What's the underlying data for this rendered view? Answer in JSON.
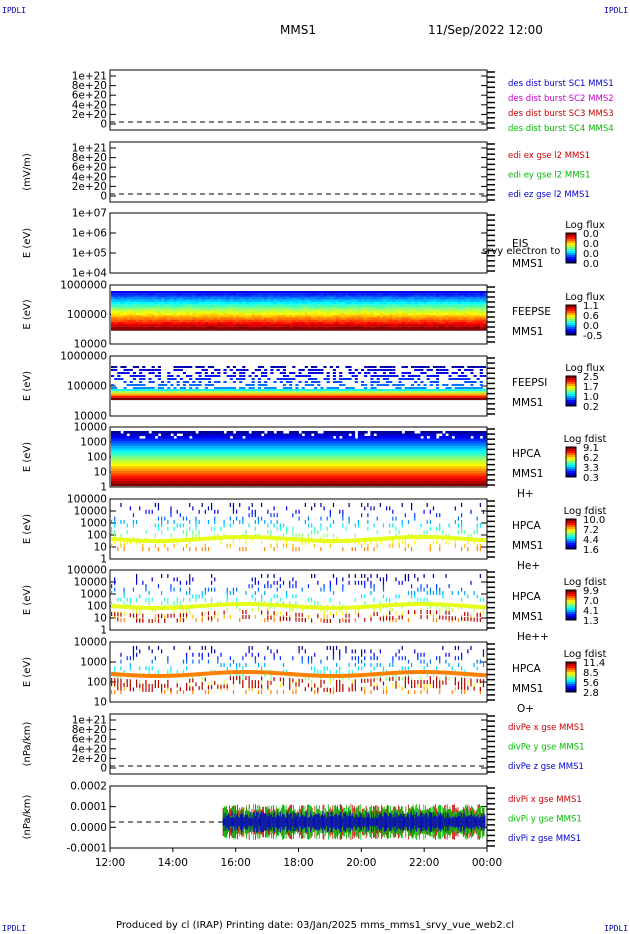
{
  "corner_labels": {
    "tl": "IPDLI",
    "tr": "IPDLI",
    "bl": "IPDLI",
    "br": "IPDLI"
  },
  "header": {
    "spacecraft": "MMS1",
    "datetime": "11/Sep/2022 12:00"
  },
  "footer": "Produced by cl (IRAP)   Printing date: 03/Jan/2025   mms_mms1_srvy_vue_web2.cl",
  "colors": {
    "blue": "#0000cc",
    "magenta": "#cc00cc",
    "red": "#cc0000",
    "green": "#00bb00"
  },
  "chart_data": {
    "type": "multi-panel",
    "x_ticks": [
      "12:00",
      "14:00",
      "16:00",
      "18:00",
      "20:00",
      "22:00",
      "00:00"
    ],
    "panels": [
      {
        "type": "line",
        "ylabel": "",
        "ticks": [
          "1e+21",
          "8e+20",
          "6e+20",
          "4e+20",
          "2e+20",
          "0"
        ],
        "legend": [
          {
            "text": "des dist burst SC1 MMS1",
            "color": "blue"
          },
          {
            "text": "des dist burst SC2 MMS2",
            "color": "magenta"
          },
          {
            "text": "des dist burst SC3 MMS3",
            "color": "red"
          },
          {
            "text": "des dist burst SC4 MMS4",
            "color": "green"
          }
        ]
      },
      {
        "type": "line",
        "ylabel": "(mV/m)",
        "ticks": [
          "1e+21",
          "8e+20",
          "6e+20",
          "4e+20",
          "2e+20",
          "0"
        ],
        "legend": [
          {
            "text": "edi ex gse l2 MMS1",
            "color": "red"
          },
          {
            "text": "edi ey gse l2 MMS1",
            "color": "green"
          },
          {
            "text": "edi ez gse l2 MMS1",
            "color": "blue"
          }
        ]
      },
      {
        "type": "heatmap",
        "ylabel": "E (eV)",
        "ticks": [
          "1e+07",
          "1e+06",
          "1e+05",
          "1e+04"
        ],
        "instrument": [
          "EIS",
          "MMS1"
        ],
        "overlay": "srvy electron to",
        "cbar_title": "Log flux",
        "cbar_ticks": [
          "0.0",
          "0.0",
          "0.0",
          "0.0"
        ],
        "empty": true
      },
      {
        "type": "heatmap",
        "ylabel": "E (eV)",
        "ticks": [
          "1000000",
          "100000",
          "10000"
        ],
        "instrument": [
          "FEEPSE",
          "MMS1"
        ],
        "cbar_title": "Log flux",
        "cbar_ticks": [
          "1.1",
          "0.6",
          "0.0",
          "-0.5"
        ]
      },
      {
        "type": "heatmap",
        "ylabel": "E (eV)",
        "ticks": [
          "1000000",
          "100000",
          "10000"
        ],
        "instrument": [
          "FEEPSI",
          "MMS1"
        ],
        "cbar_title": "Log flux",
        "cbar_ticks": [
          "2.5",
          "1.7",
          "1.0",
          "0.2"
        ]
      },
      {
        "type": "heatmap",
        "ylabel": "E (eV)",
        "ticks": [
          "10000",
          "1000",
          "100",
          "10",
          "1"
        ],
        "instrument": [
          "HPCA",
          "MMS1",
          "H+"
        ],
        "cbar_title": "Log fdist",
        "cbar_ticks": [
          "9.1",
          "6.2",
          "3.3",
          "0.3"
        ]
      },
      {
        "type": "heatmap",
        "ylabel": "E (eV)",
        "ticks": [
          "100000",
          "10000",
          "1000",
          "100",
          "10",
          "1"
        ],
        "instrument": [
          "HPCA",
          "MMS1",
          "He+"
        ],
        "cbar_title": "Log fdist",
        "cbar_ticks": [
          "10.0",
          "7.2",
          "4.4",
          "1.6"
        ]
      },
      {
        "type": "heatmap",
        "ylabel": "E (eV)",
        "ticks": [
          "100000",
          "10000",
          "1000",
          "100",
          "10",
          "1"
        ],
        "instrument": [
          "HPCA",
          "MMS1",
          "He++"
        ],
        "cbar_title": "Log fdist",
        "cbar_ticks": [
          "9.9",
          "7.0",
          "4.1",
          "1.3"
        ]
      },
      {
        "type": "heatmap",
        "ylabel": "E (eV)",
        "ticks": [
          "10000",
          "1000",
          "100",
          "10"
        ],
        "instrument": [
          "HPCA",
          "MMS1",
          "O+"
        ],
        "cbar_title": "Log fdist",
        "cbar_ticks": [
          "11.4",
          "8.5",
          "5.6",
          "2.8"
        ]
      },
      {
        "type": "line",
        "ylabel": "(nPa/km)",
        "ticks": [
          "1e+21",
          "8e+20",
          "6e+20",
          "4e+20",
          "2e+20",
          "0"
        ],
        "legend": [
          {
            "text": "divPe x gse MMS1",
            "color": "red"
          },
          {
            "text": "divPe y gse MMS1",
            "color": "green"
          },
          {
            "text": "divPe z gse MMS1",
            "color": "blue"
          }
        ]
      },
      {
        "type": "line",
        "ylabel": "(nPa/km)",
        "ticks": [
          "0.0002",
          "0.0001",
          "0.0000",
          "-0.0001"
        ],
        "legend": [
          {
            "text": "divPi x gse MMS1",
            "color": "red"
          },
          {
            "text": "divPi y gse MMS1",
            "color": "green"
          },
          {
            "text": "divPi z gse MMS1",
            "color": "blue"
          }
        ]
      }
    ]
  }
}
